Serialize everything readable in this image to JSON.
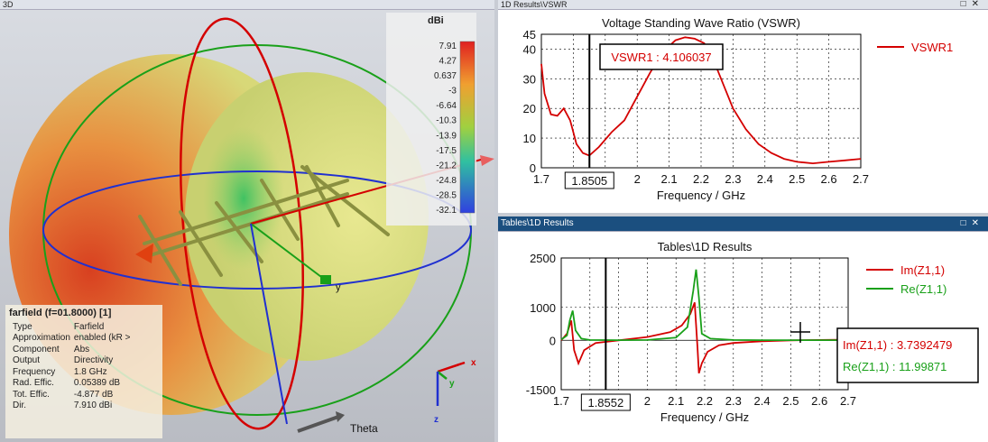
{
  "view3d": {
    "title": "3D",
    "colorbar": {
      "unit": "dBi",
      "ticks": [
        "7.91",
        "4.27",
        "0.637",
        "-3",
        "-6.64",
        "-10.3",
        "-13.9",
        "-17.5",
        "-21.2",
        "-24.8",
        "-28.5",
        "-32.1"
      ]
    },
    "info": {
      "header": "farfield (f=01.8000) [1]",
      "rows": [
        {
          "k": "Type",
          "v": "Farfield"
        },
        {
          "k": "Approximation",
          "v": "enabled (kR >"
        },
        {
          "k": "Component",
          "v": "Abs"
        },
        {
          "k": "Output",
          "v": "Directivity"
        },
        {
          "k": "Frequency",
          "v": "1.8 GHz"
        },
        {
          "k": "Rad. Effic.",
          "v": "0.05389 dB"
        },
        {
          "k": "Tot. Effic.",
          "v": "-4.877 dB"
        },
        {
          "k": "Dir.",
          "v": "7.910 dBi"
        }
      ]
    },
    "axes": {
      "x": "x",
      "y": "y",
      "z": "z",
      "theta": "Theta"
    }
  },
  "vswr_panel": {
    "title": "1D Results\\VSWR",
    "chart_title": "Voltage Standing Wave Ratio (VSWR)",
    "marker_label": "VSWR1 : 4.106037",
    "cursor_value": "1.8505",
    "legend": [
      "VSWR1"
    ]
  },
  "tables_panel": {
    "title": "Tables\\1D Results",
    "chart_title": "Tables\\1D Results",
    "cursor_value": "1.8552",
    "readout": [
      "Im(Z1,1) : 3.7392479",
      "Re(Z1,1) : 11.99871"
    ],
    "legend": [
      "Im(Z1,1)",
      "Re(Z1,1)"
    ]
  },
  "colors": {
    "red": "#d40000",
    "green": "#19a019"
  },
  "chart_data": [
    {
      "type": "line",
      "title": "Voltage Standing Wave Ratio (VSWR)",
      "xlabel": "Frequency / GHz",
      "ylabel": "",
      "xlim": [
        1.7,
        2.7
      ],
      "ylim": [
        0,
        45
      ],
      "xticks": [
        "1.7",
        "1.8",
        "1.9",
        "2",
        "2.1",
        "2.2",
        "2.3",
        "2.4",
        "2.5",
        "2.6",
        "2.7"
      ],
      "yticks": [
        "0",
        "10",
        "20",
        "30",
        "40",
        "45"
      ],
      "series": [
        {
          "name": "VSWR1",
          "x": [
            1.7,
            1.71,
            1.73,
            1.75,
            1.77,
            1.79,
            1.81,
            1.83,
            1.85,
            1.88,
            1.92,
            1.96,
            2.0,
            2.04,
            2.08,
            2.12,
            2.15,
            2.18,
            2.21,
            2.24,
            2.27,
            2.3,
            2.34,
            2.38,
            2.42,
            2.46,
            2.5,
            2.55,
            2.6,
            2.65,
            2.7
          ],
          "y": [
            35,
            25,
            18,
            17.5,
            20,
            16,
            8,
            5,
            4.1,
            7,
            12,
            16,
            24,
            32,
            39,
            43,
            44,
            43.5,
            42,
            36,
            28,
            20,
            13,
            8,
            5,
            3,
            2,
            1.5,
            2,
            2.5,
            3
          ]
        }
      ]
    },
    {
      "type": "line",
      "title": "Tables\\1D Results",
      "xlabel": "Frequency / GHz",
      "ylabel": "",
      "xlim": [
        1.7,
        2.7
      ],
      "ylim": [
        -1500,
        2500
      ],
      "xticks": [
        "1.7",
        "1.8",
        "1.9",
        "2",
        "2.1",
        "2.2",
        "2.3",
        "2.4",
        "2.5",
        "2.6",
        "2.7"
      ],
      "yticks": [
        "-1500",
        "0",
        "1000",
        "2500"
      ],
      "series": [
        {
          "name": "Im(Z1,1)",
          "x": [
            1.7,
            1.72,
            1.735,
            1.745,
            1.76,
            1.78,
            1.82,
            1.9,
            2.0,
            2.08,
            2.12,
            2.15,
            2.165,
            2.175,
            2.18,
            2.19,
            2.21,
            2.25,
            2.3,
            2.4,
            2.5,
            2.6,
            2.7
          ],
          "y": [
            0,
            200,
            600,
            -300,
            -700,
            -300,
            -80,
            0,
            100,
            250,
            450,
            800,
            1150,
            -200,
            -1000,
            -700,
            -350,
            -150,
            -80,
            -30,
            0,
            10,
            20
          ]
        },
        {
          "name": "Re(Z1,1)",
          "x": [
            1.7,
            1.72,
            1.73,
            1.74,
            1.75,
            1.77,
            1.8,
            1.9,
            2.0,
            2.1,
            2.14,
            2.16,
            2.17,
            2.18,
            2.19,
            2.22,
            2.3,
            2.4,
            2.5,
            2.6,
            2.7
          ],
          "y": [
            20,
            150,
            600,
            900,
            300,
            50,
            10,
            5,
            10,
            80,
            400,
            1500,
            2150,
            1300,
            200,
            50,
            10,
            5,
            5,
            5,
            5
          ]
        }
      ]
    }
  ]
}
